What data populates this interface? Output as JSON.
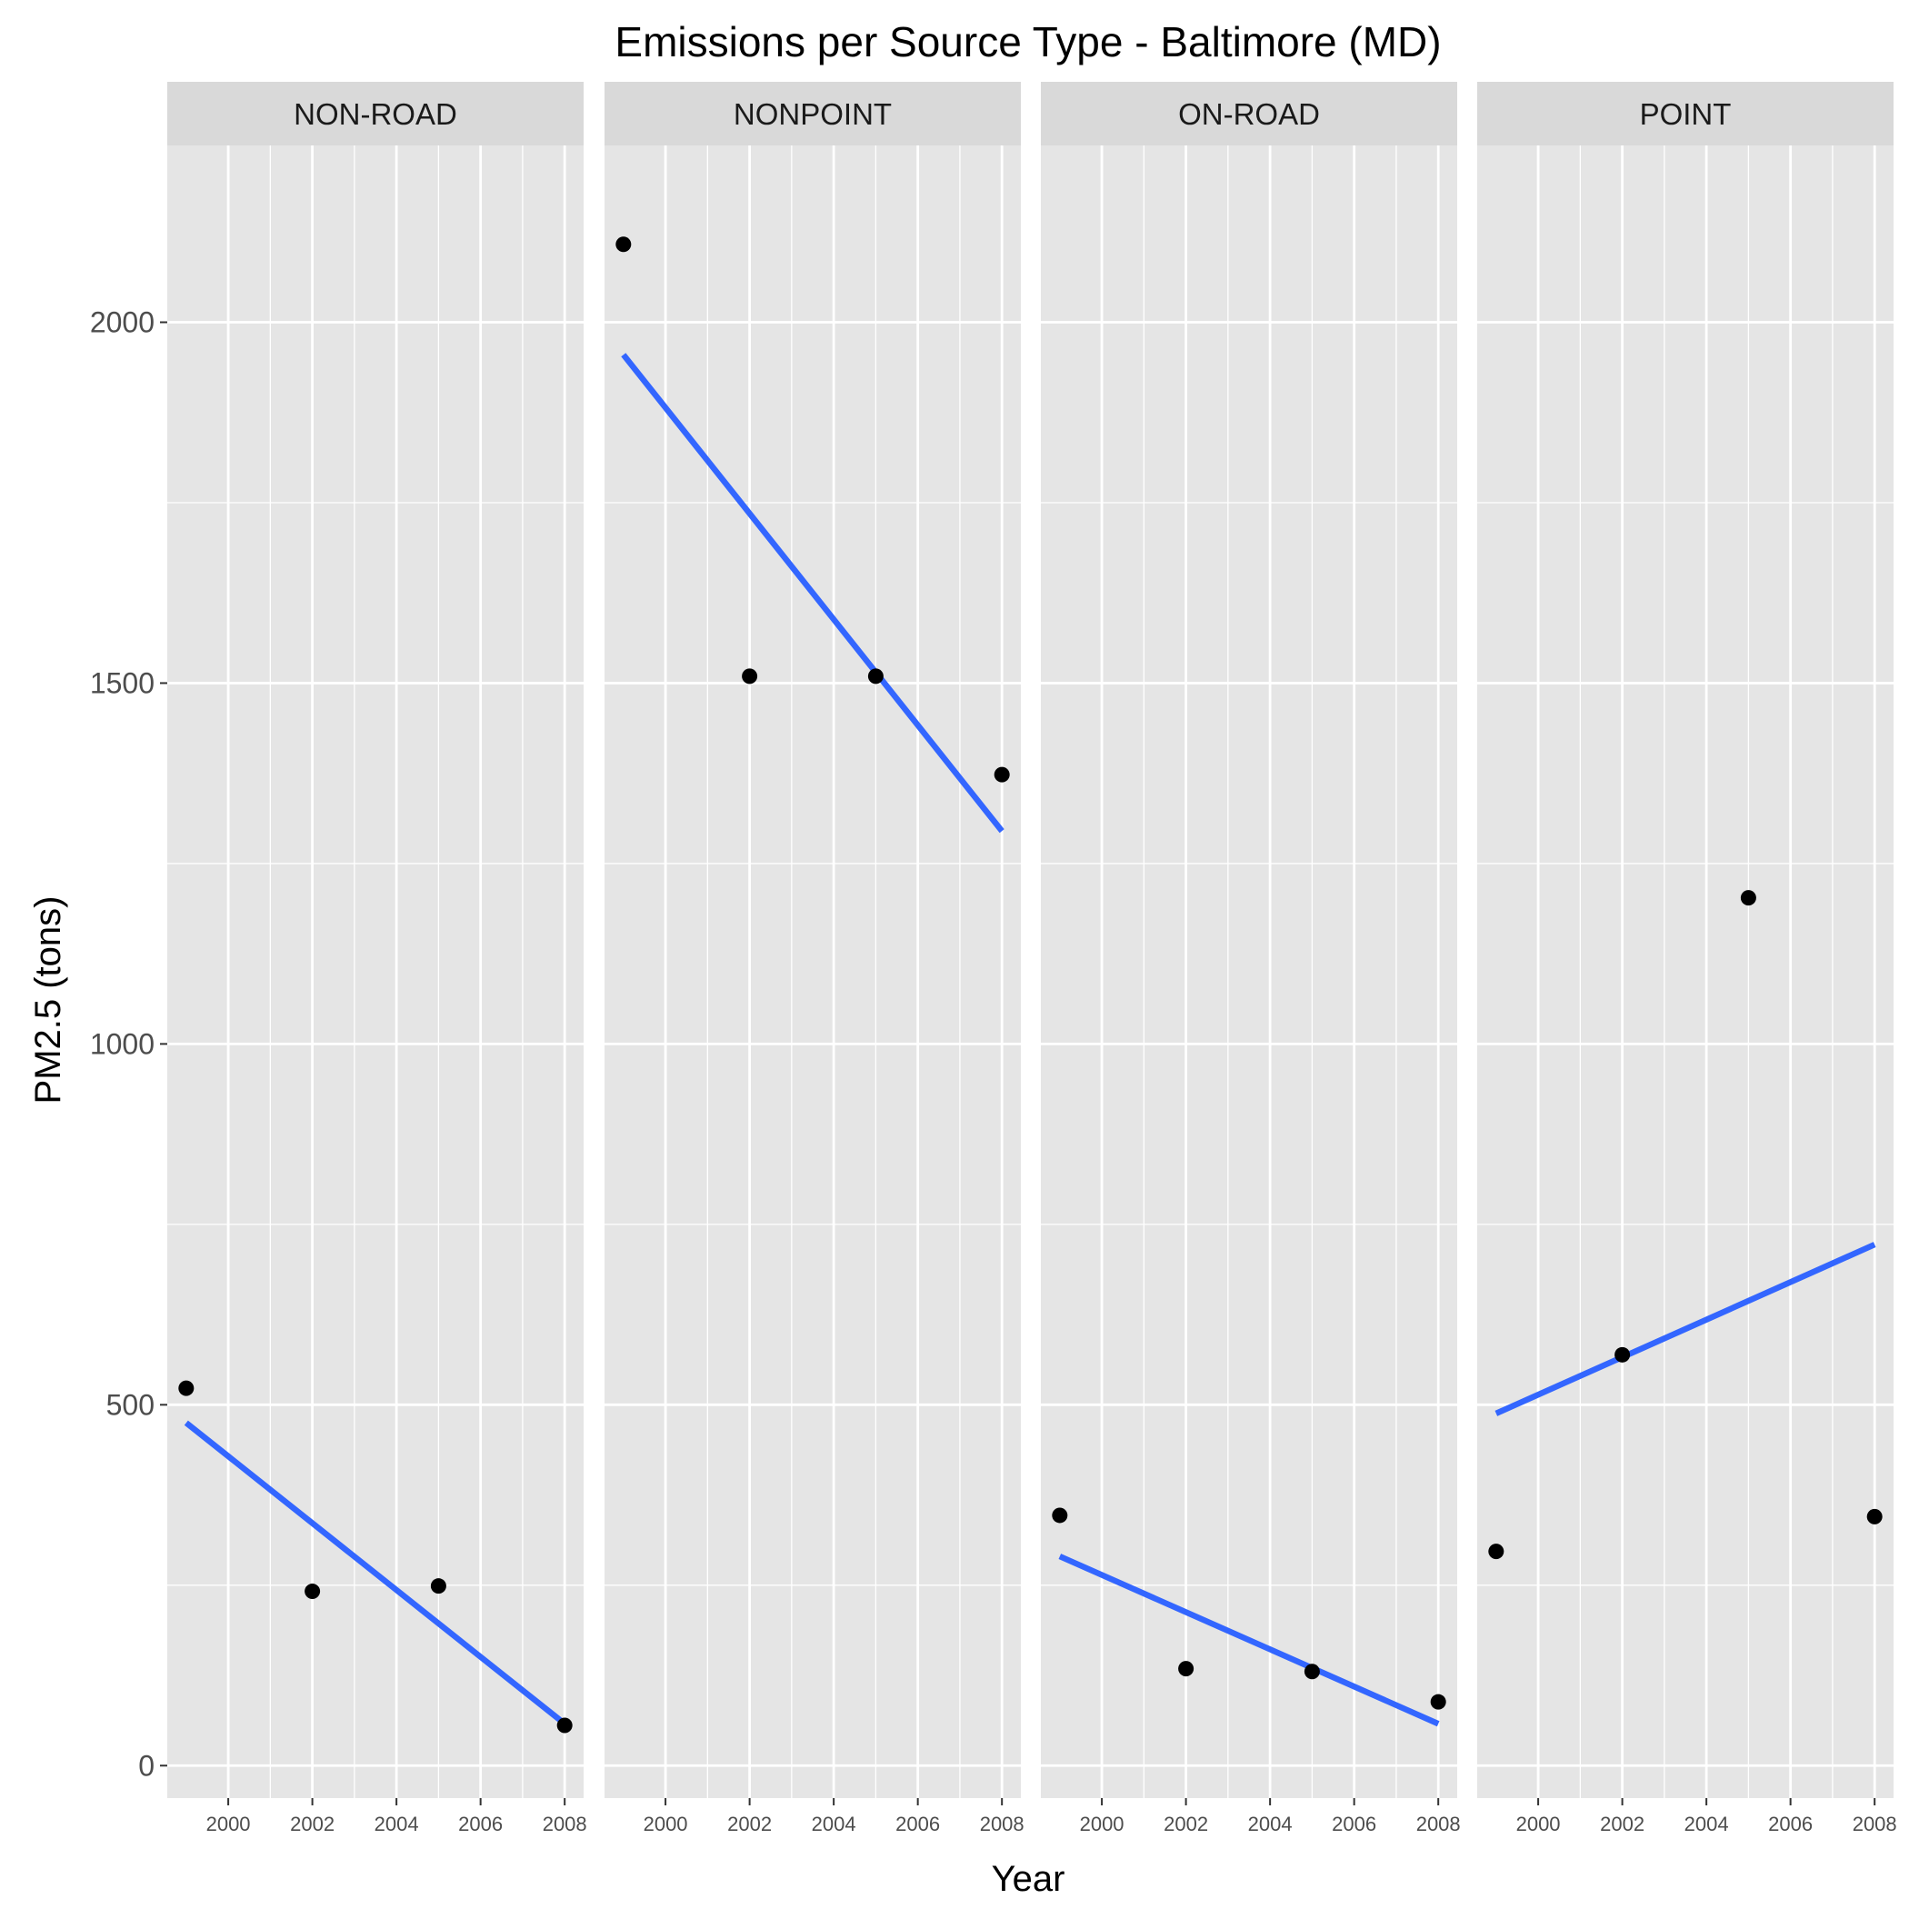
{
  "chart_data": {
    "type": "scatter",
    "title": "Emissions per Source Type - Baltimore (MD)",
    "xlabel": "Year",
    "ylabel": "PM2.5 (tons)",
    "xlim": [
      1998.55,
      2008.45
    ],
    "ylim": [
      -45,
      2245
    ],
    "x_ticks": [
      2000,
      2002,
      2004,
      2006,
      2008
    ],
    "x_tick_labels": [
      "2000",
      "2002",
      "2004",
      "2006",
      "2008"
    ],
    "y_ticks": [
      0,
      500,
      1000,
      1500,
      2000
    ],
    "y_tick_labels": [
      "0",
      "500",
      "1000",
      "1500",
      "2000"
    ],
    "grid": true,
    "legend": "none",
    "point_color": "#000000",
    "trend_color": "#3366FF",
    "panel_background": "#E5E5E5",
    "strip_background": "#D9D9D9",
    "panels": [
      {
        "label": "NON-ROAD",
        "x": [
          1999,
          2002,
          2005,
          2008
        ],
        "y": [
          522.9,
          241.5,
          248.9,
          55.8
        ],
        "trend": {
          "x": [
            1999,
            2008
          ],
          "y": [
            475,
            58
          ]
        }
      },
      {
        "label": "NONPOINT",
        "x": [
          1999,
          2002,
          2005,
          2008
        ],
        "y": [
          2108.0,
          1509.5,
          1509.5,
          1373.2
        ],
        "trend": {
          "x": [
            1999,
            2008
          ],
          "y": [
            1955,
            1295
          ]
        }
      },
      {
        "label": "ON-ROAD",
        "x": [
          1999,
          2002,
          2005,
          2008
        ],
        "y": [
          346.8,
          134.3,
          130.4,
          88.3
        ],
        "trend": {
          "x": [
            1999,
            2008
          ],
          "y": [
            290,
            58
          ]
        }
      },
      {
        "label": "POINT",
        "x": [
          1999,
          2002,
          2005,
          2008
        ],
        "y": [
          296.8,
          569.3,
          1202.5,
          344.98
        ],
        "trend": {
          "x": [
            1999,
            2008
          ],
          "y": [
            488,
            722
          ]
        }
      }
    ]
  }
}
